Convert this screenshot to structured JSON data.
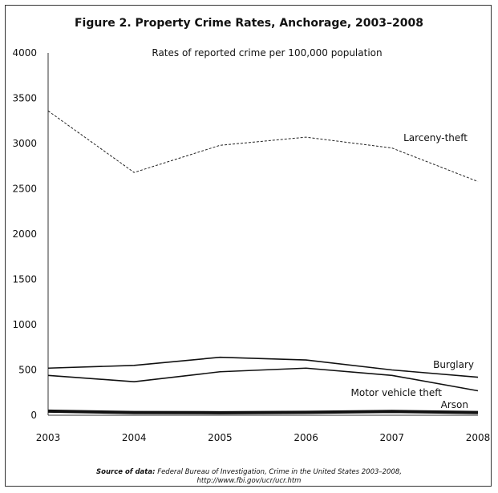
{
  "chart_data": {
    "type": "line",
    "title": "Figure 2. Property Crime Rates, Anchorage, 2003–2008",
    "subtitle": "Rates of reported crime per 100,000 population",
    "x": [
      "2003",
      "2004",
      "2005",
      "2006",
      "2007",
      "2008"
    ],
    "ylim": [
      0,
      4000
    ],
    "yticks": [
      0,
      500,
      1000,
      1500,
      2000,
      2500,
      3000,
      3500,
      4000
    ],
    "grid": false,
    "series": [
      {
        "name": "Larceny-theft",
        "values": [
          3360,
          2680,
          2980,
          3070,
          2950,
          2580
        ],
        "style": "dashed",
        "color": "#222222"
      },
      {
        "name": "Burglary",
        "values": [
          520,
          550,
          640,
          610,
          500,
          420
        ],
        "style": "solid",
        "color": "#111111"
      },
      {
        "name": "Motor vehicle theft",
        "values": [
          440,
          370,
          480,
          520,
          440,
          270
        ],
        "style": "solid",
        "color": "#111111"
      },
      {
        "name": "Arson",
        "values": [
          45,
          30,
          28,
          32,
          42,
          30
        ],
        "style": "thick",
        "color": "#111111"
      }
    ]
  },
  "source": {
    "label": "Source of data:",
    "text": "Federal Bureau of Investigation, Crime in the United States 2003–2008,",
    "url": "http://www.fbi.gov/ucr/ucr.htm"
  }
}
